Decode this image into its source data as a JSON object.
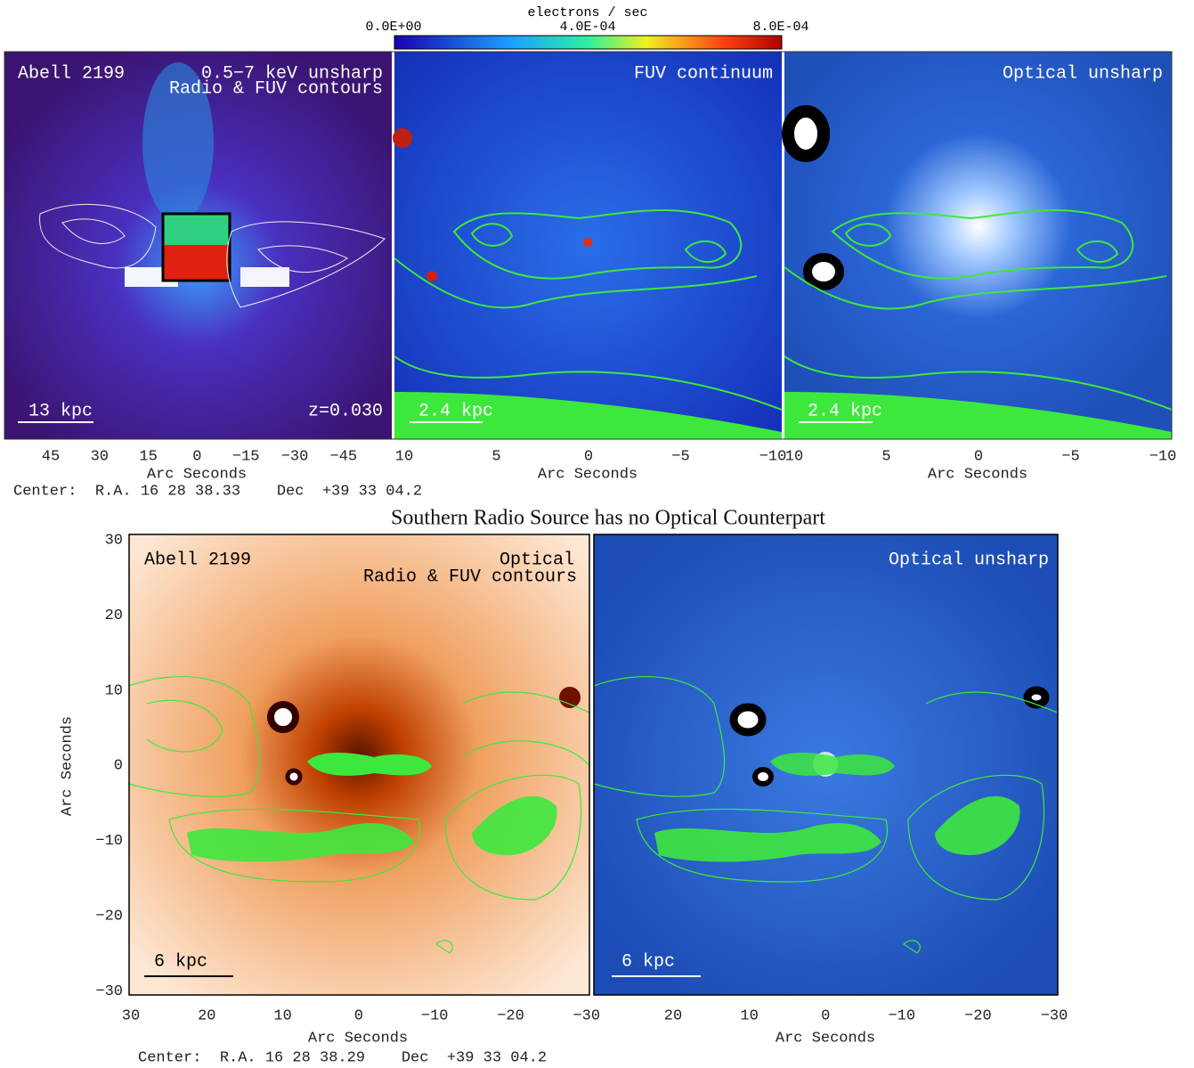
{
  "colorbar": {
    "unit": "electrons / sec",
    "labels": [
      "0.0E+00",
      "4.0E-04",
      "8.0E-04"
    ]
  },
  "top_panels": [
    {
      "labels": [
        "Abell 2199",
        "0.5−7 keV unsharp",
        "Radio & FUV contours",
        "13 kpc",
        "z=0.030"
      ],
      "x_ticks": [
        "45",
        "30",
        "15",
        "0",
        "−15",
        "−30",
        "−45"
      ],
      "x_axis": "Arc Seconds",
      "center": "Center:  R.A. 16 28 38.33    Dec  +39 33 04.2"
    },
    {
      "labels": [
        "FUV continuum",
        "2.4 kpc"
      ],
      "x_ticks": [
        "10",
        "5",
        "0",
        "−5",
        "−10"
      ],
      "x_axis": "Arc Seconds"
    },
    {
      "labels": [
        "Optical unsharp",
        "2.4 kpc"
      ],
      "x_ticks": [
        "10",
        "5",
        "0",
        "−5",
        "−10"
      ],
      "x_axis": "Arc Seconds"
    }
  ],
  "title": "Southern Radio Source has no Optical Counterpart",
  "bottom_panels": [
    {
      "labels": [
        "Abell 2199",
        "Optical",
        "Radio & FUV contours",
        "6 kpc"
      ],
      "x_ticks": [
        "30",
        "20",
        "10",
        "0",
        "−10",
        "−20",
        "−30"
      ],
      "x_axis": "Arc Seconds",
      "y_ticks": [
        "30",
        "20",
        "10",
        "0",
        "−10",
        "−20",
        "−30"
      ],
      "y_axis": "Arc Seconds",
      "center": "Center:  R.A. 16 28 38.29    Dec  +39 33 04.2"
    },
    {
      "labels": [
        "Optical unsharp",
        "6 kpc"
      ],
      "x_ticks": [
        "20",
        "10",
        "0",
        "−10",
        "−20",
        "−30"
      ],
      "x_axis": "Arc Seconds"
    }
  ]
}
